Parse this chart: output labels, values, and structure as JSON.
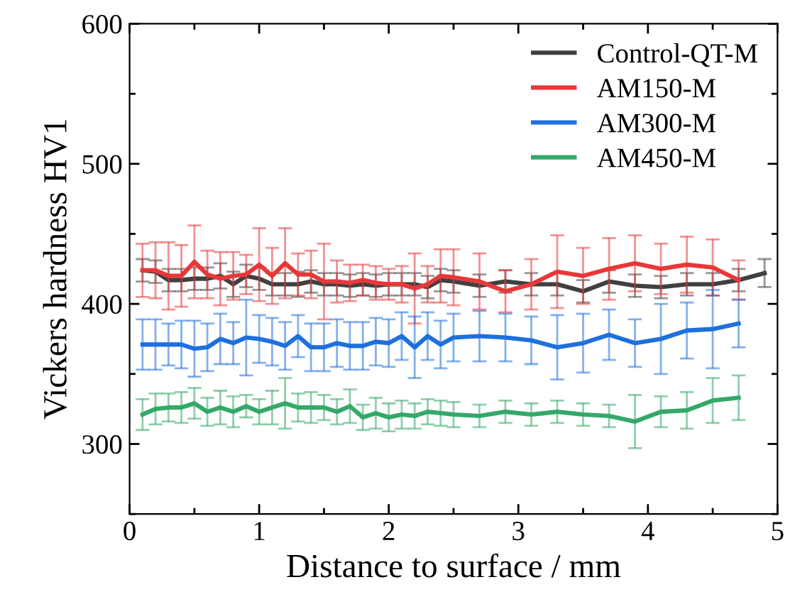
{
  "chart_data": {
    "type": "line",
    "xlabel": "Distance to surface / mm",
    "ylabel": "Vickers hardness HV1",
    "xlim": [
      0,
      5
    ],
    "ylim": [
      250,
      600
    ],
    "xticks": [
      0,
      {
        "value": 0.5,
        "label": null
      },
      1,
      {
        "value": 1.5,
        "label": null
      },
      2,
      {
        "value": 2.5,
        "label": null
      },
      3,
      {
        "value": 3.5,
        "label": null
      },
      4,
      {
        "value": 4.5,
        "label": null
      },
      5
    ],
    "yticks": [
      {
        "value": 250,
        "label": null
      },
      300,
      {
        "value": 350,
        "label": null
      },
      400,
      {
        "value": 450,
        "label": null
      },
      500,
      {
        "value": 550,
        "label": null
      },
      600
    ],
    "legend": "top right",
    "grid": false,
    "marker": "none",
    "line_style": "solid",
    "series": [
      {
        "name": "Control-QT-M",
        "color": "#404040",
        "x": [
          0.1,
          0.2,
          0.3,
          0.4,
          0.5,
          0.6,
          0.7,
          0.8,
          0.9,
          1.0,
          1.1,
          1.2,
          1.3,
          1.4,
          1.5,
          1.6,
          1.7,
          1.8,
          1.9,
          2.0,
          2.1,
          2.2,
          2.3,
          2.4,
          2.5,
          2.7,
          2.9,
          3.1,
          3.3,
          3.5,
          3.7,
          3.9,
          4.1,
          4.3,
          4.5,
          4.7,
          4.9
        ],
        "values": [
          424,
          423,
          417,
          417,
          418,
          418,
          420,
          414,
          420,
          418,
          414,
          414,
          414,
          416,
          414,
          414,
          413,
          414,
          413,
          414,
          414,
          414,
          412,
          417,
          416,
          413,
          416,
          414,
          414,
          409,
          416,
          413,
          412,
          414,
          414,
          417,
          422
        ],
        "errors": [
          8,
          8,
          8,
          8,
          8,
          8,
          9,
          9,
          8,
          8,
          8,
          8,
          9,
          8,
          8,
          8,
          8,
          8,
          8,
          8,
          8,
          8,
          8,
          8,
          8,
          8,
          8,
          8,
          8,
          8,
          8,
          8,
          8,
          8,
          8,
          8,
          10
        ]
      },
      {
        "name": "AM150-M",
        "color": "#e8383a",
        "x": [
          0.1,
          0.2,
          0.3,
          0.4,
          0.5,
          0.6,
          0.7,
          0.8,
          0.9,
          1.0,
          1.1,
          1.2,
          1.3,
          1.4,
          1.5,
          1.6,
          1.7,
          1.8,
          1.9,
          2.0,
          2.1,
          2.2,
          2.3,
          2.4,
          2.5,
          2.7,
          2.9,
          3.1,
          3.3,
          3.5,
          3.7,
          3.9,
          4.1,
          4.3,
          4.5,
          4.7
        ],
        "values": [
          424,
          424,
          420,
          420,
          430,
          421,
          418,
          420,
          421,
          428,
          420,
          429,
          421,
          421,
          416,
          416,
          415,
          417,
          415,
          414,
          414,
          411,
          414,
          420,
          419,
          416,
          409,
          414,
          423,
          420,
          425,
          429,
          425,
          428,
          426,
          417
        ],
        "errors": [
          19,
          20,
          24,
          22,
          26,
          17,
          19,
          17,
          14,
          26,
          20,
          25,
          15,
          17,
          27,
          15,
          13,
          11,
          12,
          11,
          13,
          25,
          13,
          19,
          20,
          20,
          15,
          18,
          26,
          20,
          22,
          20,
          18,
          20,
          20,
          14
        ]
      },
      {
        "name": "AM300-M",
        "color": "#1f6fdd",
        "x": [
          0.1,
          0.2,
          0.3,
          0.4,
          0.5,
          0.6,
          0.7,
          0.8,
          0.9,
          1.0,
          1.1,
          1.2,
          1.3,
          1.4,
          1.5,
          1.6,
          1.7,
          1.8,
          1.9,
          2.0,
          2.1,
          2.2,
          2.3,
          2.4,
          2.5,
          2.7,
          2.9,
          3.1,
          3.3,
          3.5,
          3.7,
          3.9,
          4.1,
          4.3,
          4.5,
          4.7
        ],
        "values": [
          371,
          371,
          371,
          371,
          368,
          369,
          375,
          372,
          376,
          375,
          373,
          370,
          377,
          369,
          369,
          372,
          370,
          370,
          373,
          372,
          377,
          369,
          377,
          371,
          376,
          377,
          376,
          374,
          369,
          372,
          378,
          372,
          375,
          381,
          382,
          386
        ],
        "errors": [
          18,
          18,
          15,
          17,
          20,
          17,
          18,
          15,
          27,
          17,
          17,
          17,
          15,
          17,
          17,
          17,
          17,
          17,
          17,
          17,
          17,
          22,
          17,
          17,
          17,
          18,
          17,
          17,
          23,
          21,
          18,
          17,
          25,
          20,
          28,
          17
        ]
      },
      {
        "name": "AM450-M",
        "color": "#34a86a",
        "x": [
          0.1,
          0.2,
          0.3,
          0.4,
          0.5,
          0.6,
          0.7,
          0.8,
          0.9,
          1.0,
          1.1,
          1.2,
          1.3,
          1.4,
          1.5,
          1.6,
          1.7,
          1.8,
          1.9,
          2.0,
          2.1,
          2.2,
          2.3,
          2.4,
          2.5,
          2.7,
          2.9,
          3.1,
          3.3,
          3.5,
          3.7,
          3.9,
          4.1,
          4.3,
          4.5,
          4.7
        ],
        "values": [
          321,
          325,
          326,
          326,
          329,
          323,
          326,
          323,
          327,
          323,
          326,
          329,
          326,
          326,
          326,
          323,
          327,
          319,
          322,
          319,
          321,
          320,
          323,
          322,
          321,
          320,
          323,
          321,
          323,
          321,
          320,
          316,
          323,
          324,
          331,
          333
        ],
        "errors": [
          11,
          11,
          10,
          11,
          11,
          10,
          12,
          11,
          8,
          9,
          12,
          18,
          10,
          11,
          9,
          9,
          12,
          9,
          11,
          10,
          10,
          9,
          9,
          9,
          9,
          8,
          8,
          8,
          8,
          8,
          8,
          19,
          11,
          13,
          16,
          16
        ]
      }
    ]
  }
}
